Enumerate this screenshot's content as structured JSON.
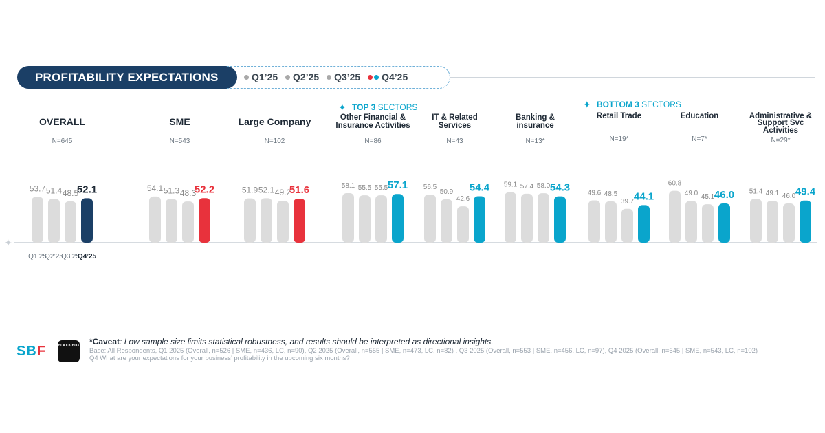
{
  "header": {
    "title": "PROFITABILITY EXPECTATIONS",
    "legend": [
      {
        "label": "Q1’25",
        "colors": [
          "#a9a9a9"
        ]
      },
      {
        "label": "Q2’25",
        "colors": [
          "#a9a9a9"
        ]
      },
      {
        "label": "Q3’25",
        "colors": [
          "#a9a9a9"
        ]
      },
      {
        "label": "Q4’25",
        "colors": [
          "#e8323c",
          "#0aa5cc"
        ]
      }
    ]
  },
  "section_labels": {
    "top3_bold": "TOP 3",
    "top3_rest": " SECTORS",
    "bottom3_bold": "BOTTOM 3",
    "bottom3_rest": " SECTORS",
    "accent_icon": "sparkle-icon"
  },
  "colors": {
    "past_bar": "#dcdcdc",
    "overall": "#1b3f66",
    "company": "#e8323c",
    "sector": "#0aa5cc",
    "past_label": "#8a8a8a"
  },
  "chart_data": {
    "type": "bar",
    "title": "PROFITABILITY EXPECTATIONS",
    "categories": [
      "Q1’25",
      "Q2’25",
      "Q3’25",
      "Q4’25"
    ],
    "x_tick_labels": [
      "Q1’25",
      "Q2’25",
      "Q3’25",
      "Q4’25"
    ],
    "groups": [
      {
        "name": "OVERALL",
        "n": "N=645",
        "values": [
          53.7,
          51.4,
          48.5,
          52.1
        ],
        "kind": "overall"
      },
      {
        "name": "SME",
        "n": "N=543",
        "values": [
          54.1,
          51.3,
          48.3,
          52.2
        ],
        "kind": "company"
      },
      {
        "name": "Large Company",
        "n": "N=102",
        "values": [
          51.9,
          52.1,
          49.2,
          51.6
        ],
        "kind": "company"
      },
      {
        "name": "Other Financial & Insurance Activities",
        "n": "N=86",
        "values": [
          58.1,
          55.5,
          55.5,
          57.1
        ],
        "kind": "sector"
      },
      {
        "name": "IT & Related Services",
        "n": "N=43",
        "values": [
          56.5,
          50.9,
          42.6,
          54.4
        ],
        "kind": "sector"
      },
      {
        "name": "Banking & insurance",
        "n": "N=13*",
        "values": [
          59.1,
          57.4,
          58.0,
          54.3
        ],
        "kind": "sector"
      },
      {
        "name": "Retail Trade",
        "n": "N=19*",
        "values": [
          49.6,
          48.5,
          39.7,
          44.1
        ],
        "kind": "sector"
      },
      {
        "name": "Education",
        "n": "N=7*",
        "values": [
          60.8,
          49.0,
          45.1,
          46.0
        ],
        "kind": "sector"
      },
      {
        "name": "Administrative & Support Svc Activities",
        "n": "N=29*",
        "values": [
          51.4,
          49.1,
          46.0,
          49.4
        ],
        "kind": "sector"
      }
    ],
    "ylim": [
      0,
      100
    ],
    "grid": false,
    "legend": "top"
  },
  "footer": {
    "caveat_bold": "*Caveat",
    "caveat_text": ": Low sample size limits statistical robustness, and results should be interpreted as directional insights.",
    "base": "Base: All Respondents, Q1 2025 (Overall, n=526 | SME, n=436, LC, n=90), Q2 2025 (Overall, n=555 | SME, n=473, LC, n=82) , Q3 2025 (Overall, n=553 | SME, n=456, LC, n=97), Q4 2025 (Overall, n=645 | SME, n=543, LC, n=102)",
    "question": "Q4 What are your expectations for your business’ profitability in the upcoming six months?"
  },
  "logos": {
    "sbf_main": "SB",
    "sbf_accent": "F",
    "blackbox": "BLA CK BOX"
  }
}
